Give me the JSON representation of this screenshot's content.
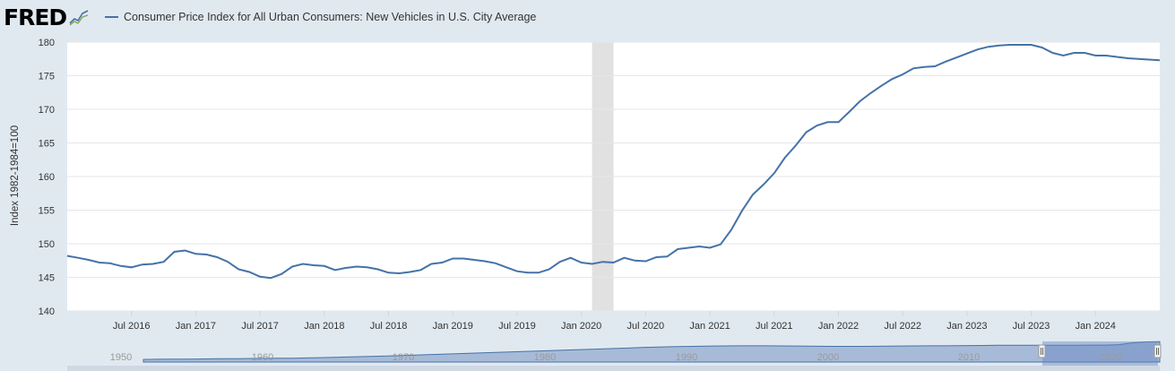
{
  "logo": {
    "text": "FRED"
  },
  "chart_data": {
    "type": "line",
    "title": "",
    "ylabel": "Index 1982-1984=100",
    "xlabel": "",
    "ylim": [
      140,
      180
    ],
    "yticks": [
      140,
      145,
      150,
      155,
      160,
      165,
      170,
      175,
      180
    ],
    "x_range": [
      "2016-01",
      "2024-07"
    ],
    "xtick_labels": [
      {
        "date": "2016-07",
        "label": "Jul 2016"
      },
      {
        "date": "2017-01",
        "label": "Jan 2017"
      },
      {
        "date": "2017-07",
        "label": "Jul 2017"
      },
      {
        "date": "2018-01",
        "label": "Jan 2018"
      },
      {
        "date": "2018-07",
        "label": "Jul 2018"
      },
      {
        "date": "2019-01",
        "label": "Jan 2019"
      },
      {
        "date": "2019-07",
        "label": "Jul 2019"
      },
      {
        "date": "2020-01",
        "label": "Jan 2020"
      },
      {
        "date": "2020-07",
        "label": "Jul 2020"
      },
      {
        "date": "2021-01",
        "label": "Jan 2021"
      },
      {
        "date": "2021-07",
        "label": "Jul 2021"
      },
      {
        "date": "2022-01",
        "label": "Jan 2022"
      },
      {
        "date": "2022-07",
        "label": "Jul 2022"
      },
      {
        "date": "2023-01",
        "label": "Jan 2023"
      },
      {
        "date": "2023-07",
        "label": "Jul 2023"
      },
      {
        "date": "2024-01",
        "label": "Jan 2024"
      }
    ],
    "recession_shading": {
      "start": "2020-02",
      "end": "2020-04",
      "color": "#e1e1e1"
    },
    "grid": true,
    "legend_position": "top-left",
    "series": [
      {
        "name": "Consumer Price Index for All Urban Consumers: New Vehicles in U.S. City Average",
        "color": "#4572a7",
        "x": [
          "2016-01",
          "2016-02",
          "2016-03",
          "2016-04",
          "2016-05",
          "2016-06",
          "2016-07",
          "2016-08",
          "2016-09",
          "2016-10",
          "2016-11",
          "2016-12",
          "2017-01",
          "2017-02",
          "2017-03",
          "2017-04",
          "2017-05",
          "2017-06",
          "2017-07",
          "2017-08",
          "2017-09",
          "2017-10",
          "2017-11",
          "2017-12",
          "2018-01",
          "2018-02",
          "2018-03",
          "2018-04",
          "2018-05",
          "2018-06",
          "2018-07",
          "2018-08",
          "2018-09",
          "2018-10",
          "2018-11",
          "2018-12",
          "2019-01",
          "2019-02",
          "2019-03",
          "2019-04",
          "2019-05",
          "2019-06",
          "2019-07",
          "2019-08",
          "2019-09",
          "2019-10",
          "2019-11",
          "2019-12",
          "2020-01",
          "2020-02",
          "2020-03",
          "2020-04",
          "2020-05",
          "2020-06",
          "2020-07",
          "2020-08",
          "2020-09",
          "2020-10",
          "2020-11",
          "2020-12",
          "2021-01",
          "2021-02",
          "2021-03",
          "2021-04",
          "2021-05",
          "2021-06",
          "2021-07",
          "2021-08",
          "2021-09",
          "2021-10",
          "2021-11",
          "2021-12",
          "2022-01",
          "2022-02",
          "2022-03",
          "2022-04",
          "2022-05",
          "2022-06",
          "2022-07",
          "2022-08",
          "2022-09",
          "2022-10",
          "2022-11",
          "2022-12",
          "2023-01",
          "2023-02",
          "2023-03",
          "2023-04",
          "2023-05",
          "2023-06",
          "2023-07",
          "2023-08",
          "2023-09",
          "2023-10",
          "2023-11",
          "2023-12",
          "2024-01",
          "2024-02",
          "2024-03",
          "2024-04",
          "2024-05",
          "2024-06",
          "2024-07"
        ],
        "values": [
          148.2,
          147.9,
          147.6,
          147.2,
          147.1,
          146.7,
          146.5,
          146.9,
          147.0,
          147.3,
          148.8,
          149.0,
          148.5,
          148.4,
          148.0,
          147.3,
          146.2,
          145.8,
          145.1,
          144.9,
          145.5,
          146.6,
          147.0,
          146.8,
          146.7,
          146.1,
          146.4,
          146.6,
          146.5,
          146.2,
          145.7,
          145.6,
          145.8,
          146.1,
          147.0,
          147.2,
          147.8,
          147.8,
          147.6,
          147.4,
          147.1,
          146.5,
          145.9,
          145.7,
          145.7,
          146.2,
          147.3,
          147.9,
          147.2,
          147.0,
          147.3,
          147.2,
          147.9,
          147.5,
          147.4,
          148.0,
          148.1,
          149.2,
          149.4,
          149.6,
          149.4,
          149.9,
          152.1,
          154.9,
          157.3,
          158.8,
          160.5,
          162.8,
          164.6,
          166.6,
          167.6,
          168.1,
          168.1,
          169.6,
          171.2,
          172.4,
          173.5,
          174.5,
          175.2,
          176.1,
          176.3,
          176.4,
          177.1,
          177.7,
          178.3,
          178.9,
          179.3,
          179.5,
          179.6,
          179.6,
          179.6,
          179.2,
          178.4,
          178.0,
          178.4,
          178.4,
          178.0,
          178.0,
          177.8,
          177.6,
          177.5,
          177.4,
          177.3
        ]
      }
    ],
    "navigator": {
      "tick_labels": [
        "1950",
        "1960",
        "1970",
        "1980",
        "1990",
        "2000",
        "2010",
        "2020"
      ],
      "series_values": [
        23,
        24,
        25,
        26,
        27,
        28,
        29,
        30,
        31,
        32,
        33,
        34,
        36,
        38,
        41,
        44,
        47,
        50,
        53,
        56,
        60,
        64,
        68,
        72,
        76,
        80,
        84,
        88,
        92,
        96,
        100,
        104,
        108,
        112,
        116,
        120,
        124,
        128,
        131,
        134,
        136,
        138,
        140,
        141,
        142,
        142,
        142,
        141,
        140,
        139,
        138,
        137,
        137,
        137,
        138,
        139,
        140,
        141,
        142,
        142,
        143,
        144,
        145,
        146,
        147,
        147,
        146,
        146,
        146,
        147,
        148,
        148,
        152,
        168,
        176,
        178
      ]
    }
  }
}
